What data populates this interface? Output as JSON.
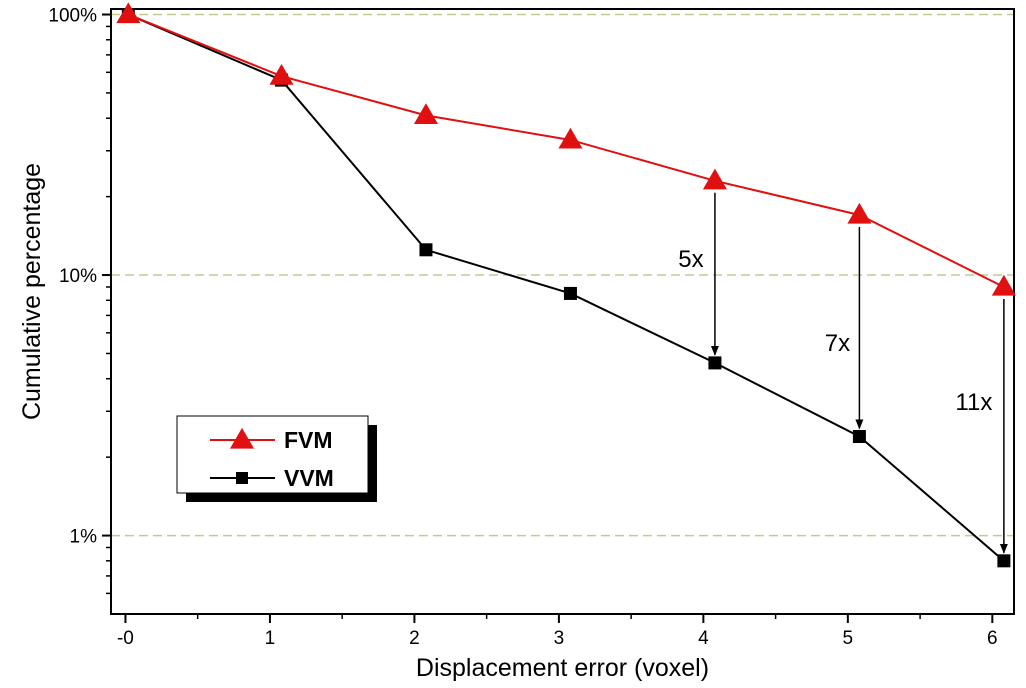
{
  "chart_data": {
    "type": "line",
    "xlabel": "Displacement error (voxel)",
    "ylabel": "Cumulative percentage",
    "x_ticks": [
      0,
      1,
      2,
      3,
      4,
      5,
      6
    ],
    "x_tick_labels": [
      "-0",
      "1",
      "2",
      "3",
      "4",
      "5",
      "6"
    ],
    "xlim": [
      -0.1,
      6.15
    ],
    "y_scale": "log",
    "y_ticks": [
      1,
      10,
      100
    ],
    "y_tick_labels": [
      "1%",
      "10%",
      "100%"
    ],
    "ylim": [
      0.5,
      105
    ],
    "grid": "horizontal dashed at major ticks",
    "legend_position": "bottom-left",
    "series": [
      {
        "name": "FVM",
        "color": "#e01010",
        "marker": "triangle",
        "x": [
          0.02,
          1.08,
          2.08,
          3.08,
          4.08,
          5.08,
          6.08
        ],
        "y": [
          100,
          58,
          41,
          33,
          23,
          17,
          9
        ]
      },
      {
        "name": "VVM",
        "color": "#000000",
        "marker": "square",
        "x": [
          0.02,
          1.08,
          2.08,
          3.08,
          4.08,
          5.08,
          6.08
        ],
        "y": [
          100,
          56,
          12.5,
          8.5,
          4.6,
          2.4,
          0.8
        ]
      }
    ],
    "annotations": [
      {
        "text": "5x",
        "x": 4.08,
        "from_y": 23,
        "to_y": 4.6
      },
      {
        "text": "7x",
        "x": 5.08,
        "from_y": 17,
        "to_y": 2.4
      },
      {
        "text": "11x",
        "x": 6.08,
        "from_y": 9,
        "to_y": 0.8
      }
    ]
  }
}
